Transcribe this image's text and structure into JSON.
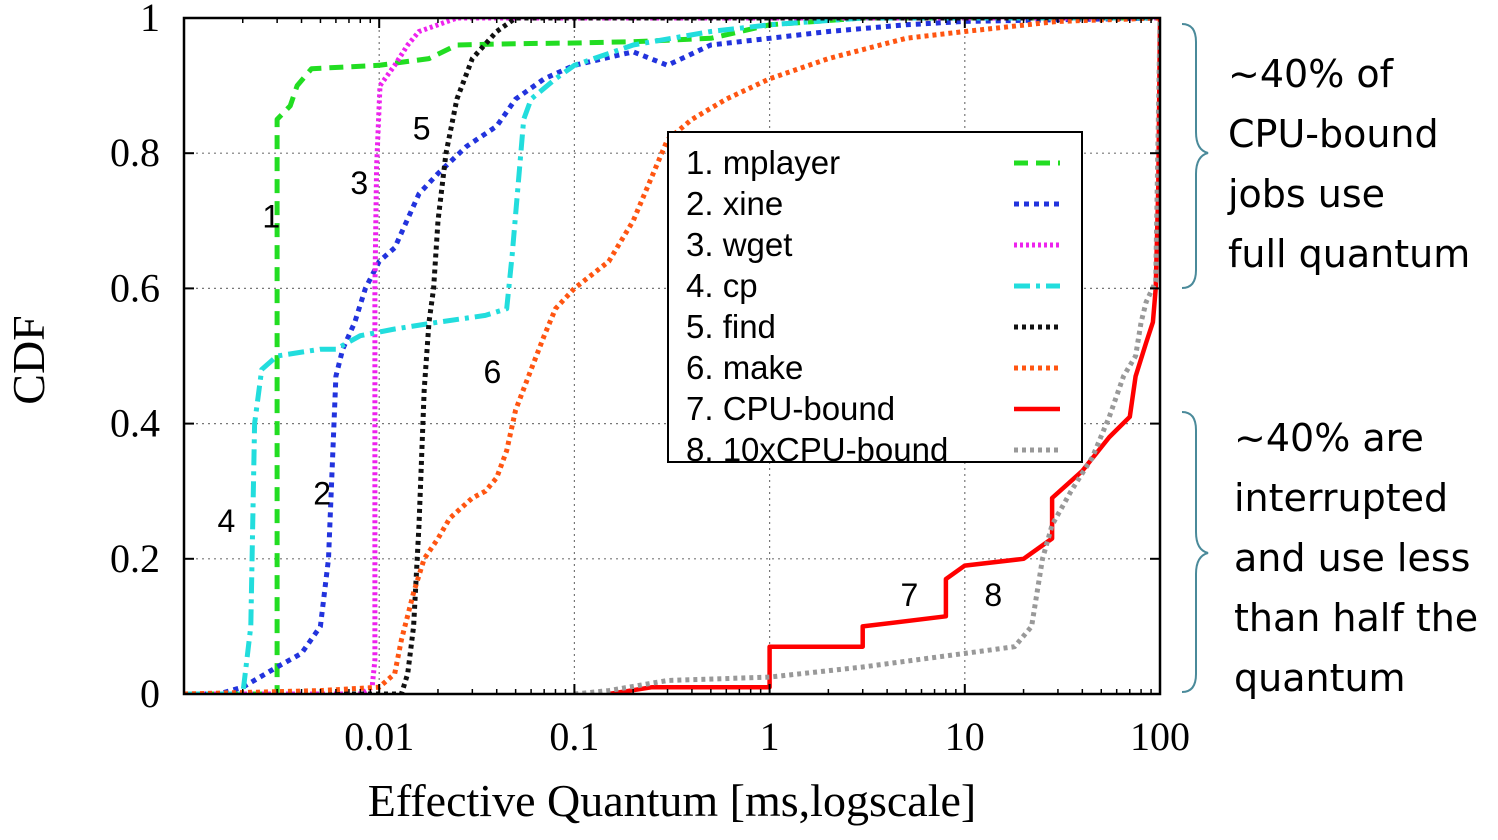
{
  "chart_data": {
    "type": "line",
    "xlabel": "Effective Quantum [ms,logscale]",
    "ylabel": "CDF",
    "xscale": "log",
    "xlim": [
      0.001,
      100
    ],
    "ylim": [
      0,
      1
    ],
    "xticks": [
      0.01,
      0.1,
      1,
      10,
      100
    ],
    "xtick_labels": [
      "0.01",
      "0.1",
      "1",
      "10",
      "100"
    ],
    "yticks": [
      0,
      0.2,
      0.4,
      0.6,
      0.8,
      1
    ],
    "ytick_labels": [
      "0",
      "0.2",
      "0.4",
      "0.6",
      "0.8",
      "1"
    ],
    "grid": true,
    "legend_position": "center-right",
    "series": [
      {
        "name": "1. mplayer",
        "label": "1",
        "color": "#22dd22",
        "dash": "14,8",
        "points": [
          [
            0.001,
            0
          ],
          [
            0.003,
            0
          ],
          [
            0.003,
            0.03
          ],
          [
            0.003,
            0.85
          ],
          [
            0.0035,
            0.87
          ],
          [
            0.0038,
            0.9
          ],
          [
            0.0045,
            0.925
          ],
          [
            0.01,
            0.93
          ],
          [
            0.018,
            0.94
          ],
          [
            0.025,
            0.96
          ],
          [
            0.05,
            0.962
          ],
          [
            0.1,
            0.963
          ],
          [
            0.2,
            0.965
          ],
          [
            0.5,
            0.97
          ],
          [
            1,
            0.99
          ],
          [
            3,
            1
          ],
          [
            100,
            1
          ]
        ],
        "label_at": [
          0.0028,
          0.69
        ]
      },
      {
        "name": "2. xine",
        "label": "2",
        "color": "#2233dd",
        "dash": "5,5",
        "points": [
          [
            0.001,
            0
          ],
          [
            0.0015,
            0
          ],
          [
            0.002,
            0.01
          ],
          [
            0.003,
            0.04
          ],
          [
            0.004,
            0.06
          ],
          [
            0.005,
            0.1
          ],
          [
            0.0055,
            0.2
          ],
          [
            0.006,
            0.47
          ],
          [
            0.0065,
            0.51
          ],
          [
            0.0075,
            0.55
          ],
          [
            0.0085,
            0.6
          ],
          [
            0.01,
            0.64
          ],
          [
            0.012,
            0.66
          ],
          [
            0.016,
            0.74
          ],
          [
            0.02,
            0.77
          ],
          [
            0.028,
            0.81
          ],
          [
            0.04,
            0.84
          ],
          [
            0.05,
            0.88
          ],
          [
            0.07,
            0.91
          ],
          [
            0.1,
            0.93
          ],
          [
            0.2,
            0.95
          ],
          [
            0.3,
            0.93
          ],
          [
            0.5,
            0.96
          ],
          [
            1,
            0.97
          ],
          [
            2,
            0.98
          ],
          [
            5,
            0.99
          ],
          [
            10,
            0.995
          ],
          [
            100,
            1
          ]
        ],
        "label_at": [
          0.0051,
          0.28
        ]
      },
      {
        "name": "3. wget",
        "label": "3",
        "color": "#ee22ee",
        "dash": "3,3",
        "points": [
          [
            0.001,
            0
          ],
          [
            0.008,
            0
          ],
          [
            0.0092,
            0.01
          ],
          [
            0.0095,
            0.05
          ],
          [
            0.0095,
            0.25
          ],
          [
            0.0095,
            0.6
          ],
          [
            0.0097,
            0.78
          ],
          [
            0.0101,
            0.9
          ],
          [
            0.012,
            0.93
          ],
          [
            0.014,
            0.96
          ],
          [
            0.016,
            0.98
          ],
          [
            0.02,
            0.99
          ],
          [
            0.025,
            1
          ],
          [
            100,
            1
          ]
        ],
        "label_at": [
          0.0079,
          0.74
        ]
      },
      {
        "name": "4. cp",
        "label": "4",
        "color": "#22dddd",
        "dash": "16,6,4,6",
        "points": [
          [
            0.001,
            0
          ],
          [
            0.002,
            0
          ],
          [
            0.0022,
            0.1
          ],
          [
            0.0023,
            0.4
          ],
          [
            0.0025,
            0.48
          ],
          [
            0.003,
            0.5
          ],
          [
            0.005,
            0.51
          ],
          [
            0.006,
            0.51
          ],
          [
            0.008,
            0.53
          ],
          [
            0.012,
            0.54
          ],
          [
            0.02,
            0.55
          ],
          [
            0.035,
            0.56
          ],
          [
            0.045,
            0.57
          ],
          [
            0.048,
            0.65
          ],
          [
            0.055,
            0.85
          ],
          [
            0.06,
            0.88
          ],
          [
            0.08,
            0.91
          ],
          [
            0.1,
            0.93
          ],
          [
            0.2,
            0.96
          ],
          [
            0.5,
            0.98
          ],
          [
            1,
            0.99
          ],
          [
            3,
            1
          ],
          [
            100,
            1
          ]
        ],
        "label_at": [
          0.00165,
          0.24
        ]
      },
      {
        "name": "5. find",
        "label": "5",
        "color": "#111111",
        "dash": "4,4",
        "points": [
          [
            0.001,
            0
          ],
          [
            0.013,
            0
          ],
          [
            0.014,
            0.03
          ],
          [
            0.015,
            0.1
          ],
          [
            0.016,
            0.25
          ],
          [
            0.017,
            0.45
          ],
          [
            0.018,
            0.55
          ],
          [
            0.019,
            0.6
          ],
          [
            0.02,
            0.7
          ],
          [
            0.022,
            0.8
          ],
          [
            0.025,
            0.88
          ],
          [
            0.03,
            0.94
          ],
          [
            0.04,
            0.98
          ],
          [
            0.05,
            1
          ],
          [
            100,
            1
          ]
        ],
        "label_at": [
          0.0165,
          0.82
        ]
      },
      {
        "name": "6. make",
        "label": "6",
        "color": "#ff5511",
        "dash": "4,4",
        "points": [
          [
            0.001,
            0
          ],
          [
            0.005,
            0.005
          ],
          [
            0.01,
            0.01
          ],
          [
            0.012,
            0.03
          ],
          [
            0.013,
            0.08
          ],
          [
            0.015,
            0.15
          ],
          [
            0.017,
            0.2
          ],
          [
            0.02,
            0.23
          ],
          [
            0.023,
            0.26
          ],
          [
            0.03,
            0.29
          ],
          [
            0.035,
            0.3
          ],
          [
            0.04,
            0.32
          ],
          [
            0.045,
            0.36
          ],
          [
            0.05,
            0.42
          ],
          [
            0.06,
            0.48
          ],
          [
            0.07,
            0.53
          ],
          [
            0.08,
            0.57
          ],
          [
            0.1,
            0.6
          ],
          [
            0.15,
            0.64
          ],
          [
            0.2,
            0.7
          ],
          [
            0.3,
            0.82
          ],
          [
            0.4,
            0.85
          ],
          [
            0.6,
            0.88
          ],
          [
            1,
            0.91
          ],
          [
            2,
            0.94
          ],
          [
            5,
            0.97
          ],
          [
            10,
            0.98
          ],
          [
            30,
            0.995
          ],
          [
            100,
            1
          ]
        ],
        "label_at": [
          0.038,
          0.46
        ]
      },
      {
        "name": "7. CPU-bound",
        "label": "7",
        "color": "#ff0000",
        "dash": "",
        "points": [
          [
            0.15,
            0
          ],
          [
            0.25,
            0.01
          ],
          [
            1,
            0.01
          ],
          [
            1,
            0.07
          ],
          [
            3,
            0.07
          ],
          [
            3,
            0.1
          ],
          [
            8,
            0.115
          ],
          [
            8,
            0.17
          ],
          [
            10,
            0.19
          ],
          [
            20,
            0.2
          ],
          [
            28,
            0.23
          ],
          [
            28,
            0.29
          ],
          [
            40,
            0.33
          ],
          [
            55,
            0.38
          ],
          [
            70,
            0.41
          ],
          [
            75,
            0.47
          ],
          [
            85,
            0.52
          ],
          [
            92,
            0.55
          ],
          [
            95,
            0.6
          ],
          [
            98,
            0.75
          ],
          [
            100,
            1
          ]
        ],
        "label_at": [
          5.2,
          0.13
        ]
      },
      {
        "name": "8. 10xCPU-bound",
        "label": "8",
        "color": "#999999",
        "dash": "4,4",
        "points": [
          [
            0.1,
            0
          ],
          [
            0.15,
            0.005
          ],
          [
            0.3,
            0.02
          ],
          [
            1,
            0.025
          ],
          [
            3,
            0.04
          ],
          [
            10,
            0.06
          ],
          [
            18,
            0.07
          ],
          [
            22,
            0.1
          ],
          [
            25,
            0.2
          ],
          [
            28,
            0.25
          ],
          [
            35,
            0.3
          ],
          [
            45,
            0.35
          ],
          [
            55,
            0.41
          ],
          [
            65,
            0.47
          ],
          [
            75,
            0.5
          ],
          [
            80,
            0.55
          ],
          [
            85,
            0.58
          ],
          [
            95,
            0.61
          ],
          [
            100,
            1
          ]
        ],
        "label_at": [
          14,
          0.13
        ]
      }
    ]
  },
  "annotations": {
    "top": "~40% of\nCPU-bound\njobs use\nfull quantum",
    "bottom": "~40% are\ninterrupted\nand use less\nthan half the\nquantum"
  }
}
